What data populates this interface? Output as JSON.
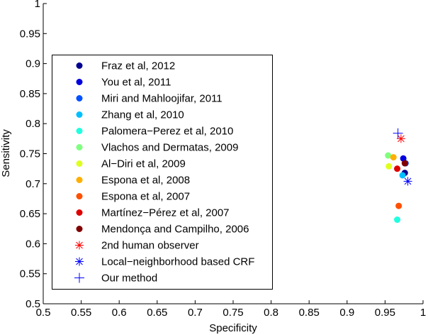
{
  "chart_data": {
    "type": "scatter",
    "title": "",
    "xlabel": "Specificity",
    "ylabel": "Sensitivity",
    "xlim": [
      0.5,
      1
    ],
    "ylim": [
      0.5,
      1
    ],
    "xticks": [
      "0.5",
      "0.55",
      "0.6",
      "0.65",
      "0.7",
      "0.75",
      "0.8",
      "0.85",
      "0.9",
      "0.95",
      "1"
    ],
    "yticks": [
      "0.5",
      "0.55",
      "0.6",
      "0.65",
      "0.7",
      "0.75",
      "0.8",
      "0.85",
      "0.9",
      "0.95",
      "1"
    ],
    "grid": false,
    "legend_position": "inside-left",
    "series": [
      {
        "name": "Fraz et al, 2012",
        "marker": "dot",
        "color": "#00008F",
        "x": 0.976,
        "y": 0.718
      },
      {
        "name": "You et al, 2011",
        "marker": "dot",
        "color": "#0000DF",
        "x": 0.974,
        "y": 0.742
      },
      {
        "name": "Miri and Mahloojifar, 2011",
        "marker": "dot",
        "color": "#0050FF",
        "x": 0.977,
        "y": 0.734
      },
      {
        "name": "Zhang et al, 2010",
        "marker": "dot",
        "color": "#00BFFF",
        "x": 0.973,
        "y": 0.714
      },
      {
        "name": "Palomera−Perez et al, 2010",
        "marker": "dot",
        "color": "#20FFDF",
        "x": 0.966,
        "y": 0.64
      },
      {
        "name": "Vlachos and Dermatas, 2009",
        "marker": "dot",
        "color": "#80FF80",
        "x": 0.954,
        "y": 0.747
      },
      {
        "name": "Al−Diri et al, 2009",
        "marker": "dot",
        "color": "#DFFF20",
        "x": 0.955,
        "y": 0.729
      },
      {
        "name": "Espona et al, 2008",
        "marker": "dot",
        "color": "#FFAF00",
        "x": 0.961,
        "y": 0.744
      },
      {
        "name": "Espona et al, 2007",
        "marker": "dot",
        "color": "#FF5000",
        "x": 0.968,
        "y": 0.663
      },
      {
        "name": "Martínez−Pérez et al, 2007",
        "marker": "dot",
        "color": "#DF0000",
        "x": 0.966,
        "y": 0.725
      },
      {
        "name": "Mendonça and Campilho, 2006",
        "marker": "dot",
        "color": "#800000",
        "x": 0.976,
        "y": 0.734
      },
      {
        "name": "2nd human observer",
        "marker": "star",
        "color": "#FF0000",
        "x": 0.971,
        "y": 0.775
      },
      {
        "name": "Local−neighborhood based CRF",
        "marker": "star",
        "color": "#0000FF",
        "x": 0.98,
        "y": 0.704
      },
      {
        "name": "Our method",
        "marker": "plus",
        "color": "#0000FF",
        "x": 0.967,
        "y": 0.784
      }
    ]
  }
}
